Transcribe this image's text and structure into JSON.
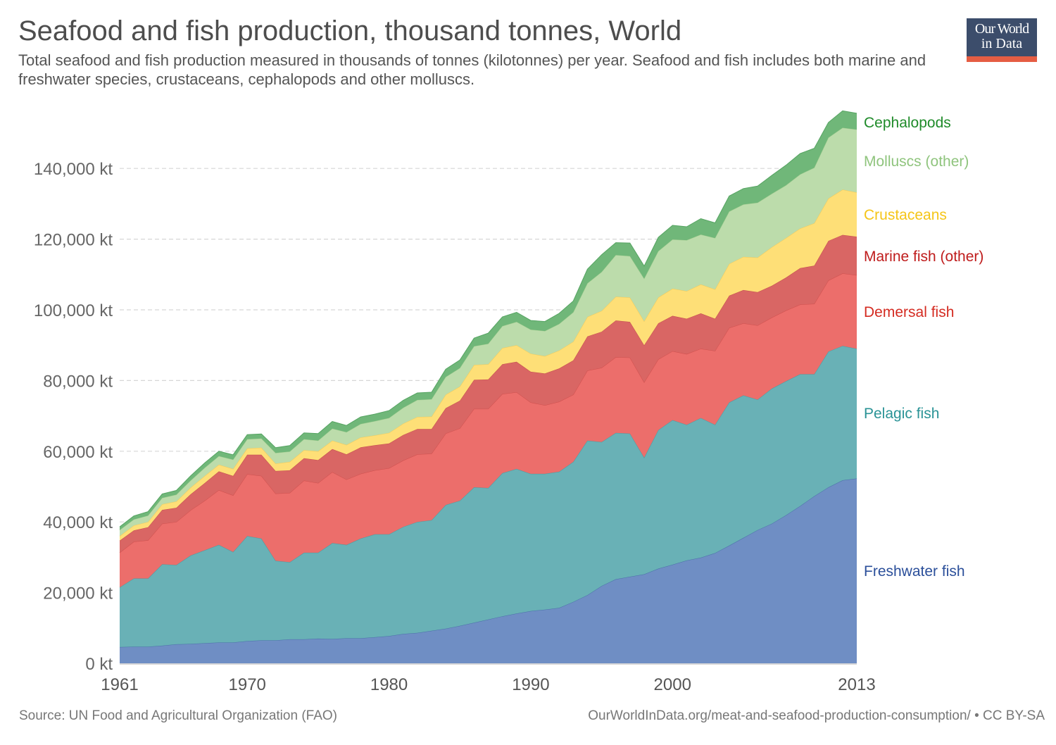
{
  "header": {
    "title": "Seafood and fish production, thousand tonnes, World",
    "subtitle": "Total seafood and fish production measured in thousands of tonnes (kilotonnes) per year. Seafood and fish includes both marine and freshwater species, crustaceans, cephalopods and other molluscs.",
    "logo_line1": "Our World",
    "logo_line2": "in Data"
  },
  "footer": {
    "source": "Source: UN Food and Agricultural Organization (FAO)",
    "url": "OurWorldInData.org/meat-and-seafood-production-consumption/ • CC BY-SA"
  },
  "chart_data": {
    "type": "area",
    "stacked": true,
    "title": "Seafood and fish production, thousand tonnes, World",
    "xlabel": "",
    "ylabel": "",
    "units": "kt",
    "xlim": [
      1961,
      2013
    ],
    "ylim": [
      0,
      156000
    ],
    "grid": true,
    "legend": "right (inline labels)",
    "x_ticks": [
      "1961",
      "1970",
      "1980",
      "1990",
      "2000",
      "2013"
    ],
    "y_ticks": [
      {
        "value": 0,
        "label": "0 kt"
      },
      {
        "value": 20000,
        "label": "20,000 kt"
      },
      {
        "value": 40000,
        "label": "40,000 kt"
      },
      {
        "value": 60000,
        "label": "60,000 kt"
      },
      {
        "value": 80000,
        "label": "80,000 kt"
      },
      {
        "value": 100000,
        "label": "100,000 kt"
      },
      {
        "value": 120000,
        "label": "120,000 kt"
      },
      {
        "value": 140000,
        "label": "140,000 kt"
      }
    ],
    "x": [
      1961,
      1962,
      1963,
      1964,
      1965,
      1966,
      1967,
      1968,
      1969,
      1970,
      1971,
      1972,
      1973,
      1974,
      1975,
      1976,
      1977,
      1978,
      1979,
      1980,
      1981,
      1982,
      1983,
      1984,
      1985,
      1986,
      1987,
      1988,
      1989,
      1990,
      1991,
      1992,
      1993,
      1994,
      1995,
      1996,
      1997,
      1998,
      1999,
      2000,
      2001,
      2002,
      2003,
      2004,
      2005,
      2006,
      2007,
      2008,
      2009,
      2010,
      2011,
      2012,
      2013
    ],
    "series": [
      {
        "name": "Freshwater fish",
        "color": "#6f8ec4",
        "line": "#4a6fa8",
        "label_color": "#2b4f9a",
        "values": [
          4600,
          4700,
          4700,
          5000,
          5400,
          5500,
          5700,
          5900,
          5900,
          6300,
          6500,
          6500,
          6800,
          6800,
          7000,
          6900,
          7100,
          7100,
          7400,
          7700,
          8300,
          8600,
          9200,
          9800,
          10600,
          11500,
          12400,
          13300,
          14100,
          14800,
          15200,
          15700,
          17400,
          19300,
          21900,
          23800,
          24500,
          25200,
          26800,
          27900,
          29100,
          29900,
          31200,
          33300,
          35500,
          37700,
          39500,
          41900,
          44500,
          47300,
          49800,
          51800,
          52300
        ]
      },
      {
        "name": "Pelagic fish",
        "color": "#69b1b6",
        "line": "#4e9a9f",
        "label_color": "#2a9396",
        "values": [
          16900,
          19300,
          19300,
          23000,
          22400,
          25000,
          26300,
          27600,
          25600,
          29700,
          28800,
          22500,
          21800,
          24500,
          24300,
          27100,
          26400,
          28200,
          29100,
          28800,
          30300,
          31400,
          31300,
          35000,
          35400,
          38300,
          37200,
          40500,
          40900,
          38800,
          38400,
          38500,
          39600,
          43700,
          40700,
          41400,
          40500,
          33000,
          39200,
          40900,
          38400,
          39500,
          36300,
          40500,
          40300,
          36900,
          38200,
          37900,
          37300,
          34500,
          38400,
          38000,
          36700
        ]
      },
      {
        "name": "Demersal fish",
        "color": "#ec6e6b",
        "line": "#d0504e",
        "label_color": "#d42b21",
        "values": [
          9800,
          10400,
          10800,
          11500,
          12200,
          12800,
          14000,
          15500,
          16000,
          17500,
          17700,
          19000,
          19600,
          20400,
          19700,
          20100,
          18500,
          18300,
          18100,
          18700,
          18800,
          19100,
          18800,
          20200,
          20500,
          22200,
          22400,
          22400,
          21700,
          20200,
          19400,
          19800,
          19000,
          19800,
          21000,
          21400,
          21500,
          21300,
          20000,
          19500,
          20000,
          19600,
          20900,
          21100,
          20400,
          21000,
          20100,
          20000,
          19700,
          19900,
          20100,
          20500,
          20800
        ]
      },
      {
        "name": "Marine fish (other)",
        "color": "#d96664",
        "line": "#c24f4d",
        "label_color": "#bf1c1c",
        "values": [
          3400,
          3200,
          3700,
          3900,
          4000,
          4500,
          5000,
          5300,
          5500,
          5500,
          6000,
          6400,
          6400,
          6300,
          6500,
          6500,
          7100,
          7500,
          7100,
          7000,
          7200,
          7200,
          7000,
          7200,
          7800,
          8200,
          8300,
          8400,
          8600,
          8700,
          9000,
          9400,
          9700,
          9700,
          10200,
          10400,
          10100,
          10500,
          10200,
          10000,
          10000,
          10000,
          9100,
          9100,
          9400,
          9400,
          9000,
          9300,
          10300,
          10800,
          11200,
          10900,
          10900
        ]
      },
      {
        "name": "Crustaceans",
        "color": "#fedf77",
        "line": "#f0c95a",
        "label_color": "#f5c518",
        "values": [
          1300,
          1400,
          1500,
          1600,
          1800,
          1900,
          2000,
          1900,
          2000,
          1800,
          2000,
          2100,
          2400,
          2300,
          2500,
          2400,
          2700,
          2800,
          2800,
          3000,
          3200,
          3400,
          3500,
          3800,
          4000,
          4200,
          4300,
          4600,
          4700,
          5100,
          4900,
          5100,
          5300,
          5500,
          5900,
          6700,
          6900,
          6800,
          7300,
          7700,
          7800,
          8200,
          8300,
          9000,
          9400,
          9800,
          10900,
          11200,
          11200,
          12000,
          12000,
          12800,
          12500
        ]
      },
      {
        "name": "Molluscs (other)",
        "color": "#bcdcab",
        "line": "#a9d094",
        "label_color": "#8fc47d",
        "values": [
          1700,
          1700,
          1800,
          1800,
          1900,
          2000,
          2300,
          2400,
          2600,
          2600,
          2600,
          3000,
          2900,
          3100,
          3000,
          3400,
          3600,
          3800,
          4000,
          4200,
          4500,
          4800,
          4900,
          5000,
          5200,
          5300,
          5800,
          6200,
          6600,
          6800,
          7100,
          7500,
          8300,
          9500,
          11000,
          11800,
          11700,
          12000,
          13100,
          13900,
          14400,
          14100,
          14500,
          14800,
          14800,
          15500,
          15100,
          14900,
          15300,
          15700,
          17200,
          17500,
          17800
        ]
      },
      {
        "name": "Cephalopods",
        "color": "#70b779",
        "line": "#56a462",
        "label_color": "#1f8b2a",
        "values": [
          900,
          1000,
          1100,
          1100,
          1200,
          1300,
          1400,
          1400,
          1400,
          1300,
          1300,
          1500,
          1700,
          1800,
          2000,
          2000,
          1900,
          2000,
          2000,
          2100,
          2100,
          2000,
          2000,
          2200,
          2300,
          2300,
          3000,
          2600,
          2700,
          2600,
          2700,
          3000,
          3200,
          4000,
          4900,
          3500,
          3700,
          3600,
          3900,
          4000,
          3800,
          4500,
          4300,
          4400,
          4500,
          4700,
          5200,
          5700,
          5900,
          5500,
          4300,
          4800,
          4600
        ]
      }
    ]
  }
}
